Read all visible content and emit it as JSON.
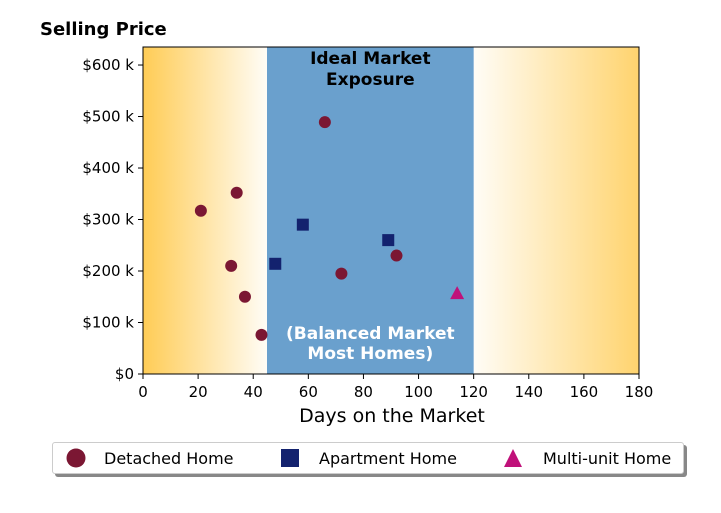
{
  "chart_data": {
    "type": "scatter",
    "title": "Selling Price",
    "xlabel": "Days on the Market",
    "ylabel": "",
    "xlim": [
      0,
      180
    ],
    "ylim": [
      0,
      635000
    ],
    "x_ticks": [
      0,
      20,
      40,
      60,
      80,
      100,
      120,
      140,
      160,
      180
    ],
    "x_tick_labels": [
      "0",
      "20",
      "40",
      "60",
      "80",
      "100",
      "120",
      "140",
      "160",
      "180"
    ],
    "y_ticks": [
      0,
      100000,
      200000,
      300000,
      400000,
      500000,
      600000
    ],
    "y_tick_labels": [
      "$0",
      "$100 k",
      "$200 k",
      "$300 k",
      "$400 k",
      "$500 k",
      "$600 k"
    ],
    "grid": false,
    "legend_position": "bottom",
    "background_zone": {
      "x_range": [
        45,
        120
      ],
      "color": "#6aa0cd",
      "label_top": "Ideal Market\nExposure",
      "label_bottom": "(Balanced Market\nMost Homes)"
    },
    "gradient_color": "#ffcc55",
    "series": [
      {
        "name": "Detached Home",
        "marker": "circle",
        "color": "#7b1733",
        "points": [
          {
            "x": 21,
            "y": 317000
          },
          {
            "x": 32,
            "y": 210000
          },
          {
            "x": 34,
            "y": 352000
          },
          {
            "x": 37,
            "y": 150000
          },
          {
            "x": 43,
            "y": 76000
          },
          {
            "x": 66,
            "y": 489000
          },
          {
            "x": 72,
            "y": 195000
          },
          {
            "x": 92,
            "y": 230000
          }
        ]
      },
      {
        "name": "Apartment Home",
        "marker": "square",
        "color": "#13226e",
        "points": [
          {
            "x": 48,
            "y": 214000
          },
          {
            "x": 58,
            "y": 290000
          },
          {
            "x": 89,
            "y": 260000
          }
        ]
      },
      {
        "name": "Multi-unit Home",
        "marker": "triangle",
        "color": "#c0117a",
        "points": [
          {
            "x": 114,
            "y": 157000
          }
        ]
      }
    ]
  }
}
